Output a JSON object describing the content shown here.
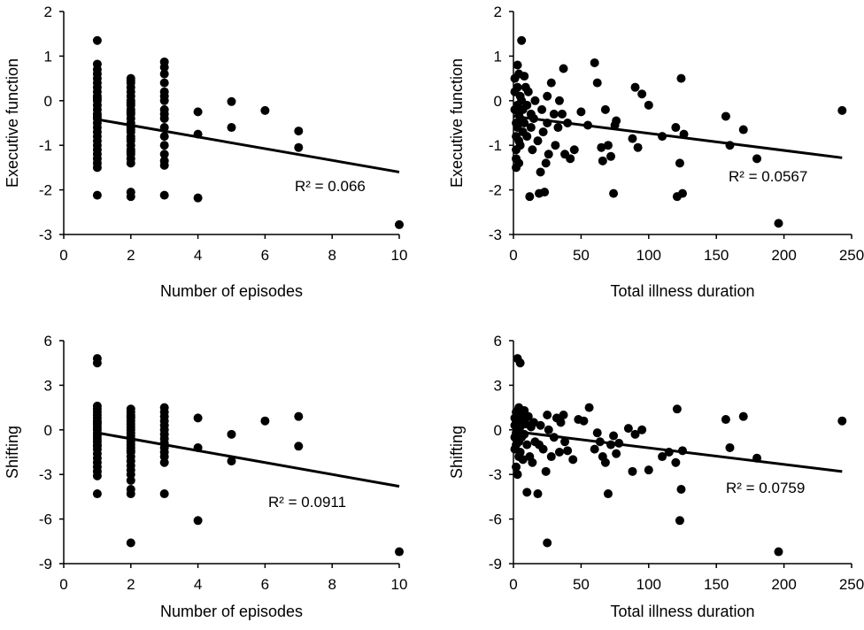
{
  "chart_data": [
    {
      "type": "scatter",
      "xlabel": "Number of episodes",
      "ylabel": "Executive function",
      "xlim": [
        0,
        10
      ],
      "ylim": [
        -3,
        2
      ],
      "xticks": [
        "0",
        "2",
        "4",
        "6",
        "8",
        "10"
      ],
      "yticks": [
        "2",
        "1",
        "0",
        "-1",
        "-2",
        "-3"
      ],
      "r2_label": "R² = 0.066",
      "trend": {
        "x": [
          1,
          10
        ],
        "y": [
          -0.42,
          -1.6
        ]
      },
      "points": {
        "x": [
          1,
          1,
          1,
          1,
          1,
          1,
          1,
          1,
          1,
          1,
          1,
          1,
          1,
          1,
          1,
          1,
          1,
          1,
          1,
          1,
          1,
          1,
          1,
          1,
          1,
          1,
          1,
          1,
          2,
          2,
          2,
          2,
          2,
          2,
          2,
          2,
          2,
          2,
          2,
          2,
          2,
          2,
          2,
          2,
          2,
          2,
          2,
          2,
          2,
          2,
          2,
          2,
          2,
          2,
          2,
          2,
          2,
          3,
          3,
          3,
          3,
          3,
          3,
          3,
          3,
          3,
          3,
          3,
          3,
          3,
          3,
          3,
          3,
          3,
          4,
          4,
          4,
          5,
          5,
          6,
          7,
          7,
          10
        ],
        "y": [
          1.35,
          0.82,
          0.7,
          0.6,
          0.5,
          0.4,
          0.3,
          0.2,
          0.1,
          0,
          -0.1,
          -0.2,
          -0.3,
          -0.4,
          -0.5,
          -0.6,
          -0.7,
          -0.8,
          -0.9,
          -1.0,
          -1.1,
          -1.2,
          -1.3,
          -1.4,
          -1.5,
          -2.12,
          0.05,
          -0.35,
          0.5,
          0.4,
          0.3,
          0.2,
          0.1,
          0,
          -0.1,
          -0.2,
          -0.3,
          -0.4,
          -0.5,
          -0.6,
          -0.7,
          -0.8,
          -0.9,
          -1.0,
          -1.1,
          -1.2,
          -1.3,
          -1.4,
          -2.05,
          -2.15,
          0.45,
          -0.25,
          -0.55,
          -0.85,
          -1.15,
          -0.05,
          -0.65,
          0.87,
          0.75,
          0.6,
          0.4,
          0.2,
          0,
          -0.2,
          -0.3,
          -0.4,
          -0.6,
          -0.8,
          -1.0,
          -1.2,
          -1.35,
          -1.45,
          -2.12,
          0.1,
          -0.25,
          -0.75,
          -2.18,
          -0.02,
          -0.6,
          -0.22,
          -0.68,
          -1.05,
          -2.78
        ]
      }
    },
    {
      "type": "scatter",
      "xlabel": "Total illness duration",
      "ylabel": "Executive function",
      "xlim": [
        0,
        250
      ],
      "ylim": [
        -3,
        2
      ],
      "xticks": [
        "0",
        "50",
        "100",
        "150",
        "200",
        "250"
      ],
      "yticks": [
        "2",
        "1",
        "0",
        "-1",
        "-2",
        "-3"
      ],
      "r2_label": "R² = 0.0567",
      "trend": {
        "x": [
          0,
          243
        ],
        "y": [
          -0.35,
          -1.28
        ]
      },
      "points": {
        "x": [
          1,
          1,
          1,
          2,
          2,
          2,
          2,
          2,
          3,
          3,
          3,
          3,
          4,
          4,
          4,
          4,
          5,
          5,
          5,
          6,
          6,
          7,
          7,
          8,
          8,
          9,
          10,
          10,
          11,
          12,
          13,
          13,
          14,
          15,
          16,
          18,
          19,
          20,
          21,
          22,
          23,
          24,
          25,
          25,
          26,
          28,
          30,
          31,
          33,
          34,
          36,
          37,
          38,
          40,
          42,
          45,
          50,
          55,
          60,
          62,
          65,
          66,
          68,
          70,
          72,
          74,
          75,
          76,
          88,
          90,
          92,
          95,
          100,
          110,
          120,
          121,
          123,
          124,
          125,
          126,
          157,
          160,
          170,
          180,
          196,
          243
        ],
        "y": [
          0.5,
          0.2,
          -0.2,
          -0.5,
          -0.8,
          -1.1,
          -1.3,
          -1.5,
          0.8,
          0.3,
          -0.1,
          -0.6,
          0.6,
          -0.3,
          -0.9,
          -1.4,
          0.1,
          -0.4,
          -1.0,
          1.35,
          0.0,
          -0.2,
          -0.7,
          0.55,
          -0.5,
          0.3,
          -0.1,
          -0.8,
          0.2,
          -2.15,
          -0.3,
          -0.6,
          -1.1,
          -0.4,
          0.0,
          -0.9,
          -2.08,
          -1.6,
          -0.2,
          -0.7,
          -2.05,
          -1.4,
          0.1,
          -0.5,
          -1.2,
          0.4,
          -0.3,
          -1.0,
          -0.6,
          0.0,
          -0.3,
          0.72,
          -1.2,
          -0.5,
          -1.3,
          -1.1,
          -0.25,
          -0.55,
          0.85,
          0.4,
          -1.05,
          -1.35,
          -0.2,
          -1.0,
          -1.25,
          -2.08,
          -0.55,
          -0.45,
          -0.85,
          0.3,
          -1.05,
          0.15,
          -0.1,
          -0.8,
          -0.6,
          -2.15,
          -1.4,
          0.5,
          -2.08,
          -0.75,
          -0.35,
          -1.0,
          -0.65,
          -1.3,
          -2.75,
          -0.22
        ]
      }
    },
    {
      "type": "scatter",
      "xlabel": "Number of episodes",
      "ylabel": "Shifting",
      "xlim": [
        0,
        10
      ],
      "ylim": [
        -9,
        6
      ],
      "xticks": [
        "0",
        "2",
        "4",
        "6",
        "8",
        "10"
      ],
      "yticks": [
        "6",
        "3",
        "0",
        "-3",
        "-6",
        "-9"
      ],
      "r2_label": "R² = 0.0911",
      "trend": {
        "x": [
          1,
          10
        ],
        "y": [
          -0.2,
          -3.8
        ]
      },
      "points": {
        "x": [
          1,
          1,
          1,
          1,
          1,
          1,
          1,
          1,
          1,
          1,
          1,
          1,
          1,
          1,
          1,
          1,
          1,
          1,
          1,
          1,
          1,
          1,
          1,
          1,
          1,
          1,
          2,
          2,
          2,
          2,
          2,
          2,
          2,
          2,
          2,
          2,
          2,
          2,
          2,
          2,
          2,
          2,
          2,
          2,
          2,
          2,
          2,
          2,
          2,
          2,
          2,
          2,
          3,
          3,
          3,
          3,
          3,
          3,
          3,
          3,
          3,
          3,
          3,
          3,
          3,
          3,
          4,
          4,
          4,
          5,
          5,
          6,
          7,
          7,
          10
        ],
        "y": [
          4.8,
          4.5,
          1.6,
          1.4,
          1.2,
          1.0,
          0.8,
          0.6,
          0.4,
          0.2,
          0,
          -0.2,
          -0.4,
          -0.6,
          -0.8,
          -1.0,
          -1.3,
          -1.6,
          -1.9,
          -2.2,
          -2.5,
          -2.8,
          -3.1,
          -4.3,
          0.5,
          -1.1,
          1.4,
          1.2,
          1.0,
          0.8,
          0.6,
          0.4,
          0.2,
          0,
          -0.2,
          -0.4,
          -0.6,
          -0.8,
          -1.0,
          -1.2,
          -1.5,
          -1.8,
          -2.1,
          -2.4,
          -2.7,
          -3.0,
          -3.4,
          -4.0,
          -4.3,
          -7.6,
          0.9,
          -1.4,
          1.5,
          1.2,
          0.9,
          0.6,
          0.3,
          0,
          -0.3,
          -0.6,
          -0.9,
          -1.2,
          -1.5,
          -1.8,
          -2.2,
          -4.3,
          0.8,
          -1.2,
          -6.1,
          -0.3,
          -2.1,
          0.6,
          0.9,
          -1.1,
          -8.2
        ]
      }
    },
    {
      "type": "scatter",
      "xlabel": "Total illness duration",
      "ylabel": "Shifting",
      "xlim": [
        0,
        250
      ],
      "ylim": [
        -9,
        6
      ],
      "xticks": [
        "0",
        "50",
        "100",
        "150",
        "200",
        "250"
      ],
      "yticks": [
        "6",
        "3",
        "0",
        "-3",
        "-6",
        "-9"
      ],
      "r2_label": "R² = 0.0759",
      "trend": {
        "x": [
          0,
          243
        ],
        "y": [
          -0.1,
          -2.8
        ]
      },
      "points": {
        "x": [
          1,
          1,
          1,
          1,
          2,
          2,
          2,
          2,
          2,
          3,
          3,
          3,
          4,
          4,
          4,
          5,
          5,
          5,
          6,
          6,
          7,
          7,
          8,
          8,
          9,
          10,
          10,
          11,
          12,
          13,
          14,
          15,
          16,
          18,
          19,
          20,
          22,
          24,
          25,
          25,
          26,
          28,
          30,
          32,
          34,
          35,
          37,
          38,
          40,
          44,
          48,
          52,
          56,
          60,
          62,
          64,
          66,
          68,
          70,
          72,
          74,
          76,
          78,
          85,
          88,
          90,
          95,
          100,
          110,
          115,
          120,
          121,
          123,
          124,
          125,
          157,
          160,
          170,
          180,
          196,
          243
        ],
        "y": [
          0.8,
          0.3,
          -0.5,
          -1.3,
          1.2,
          0.5,
          -0.2,
          -1.0,
          -2.5,
          4.8,
          0.0,
          -3.0,
          1.5,
          -0.8,
          -1.8,
          4.5,
          0.2,
          -1.5,
          1.0,
          -0.5,
          0.7,
          -2.0,
          1.3,
          -0.3,
          0.4,
          -1.0,
          -4.2,
          0.9,
          -1.8,
          0.2,
          -2.2,
          0.5,
          -0.8,
          -4.3,
          -1.0,
          0.3,
          -1.3,
          -2.8,
          -7.6,
          1.0,
          0.0,
          -1.8,
          -0.5,
          0.8,
          -1.5,
          0.5,
          1.0,
          -0.8,
          -1.4,
          -2.0,
          0.7,
          0.6,
          1.5,
          -1.3,
          -0.2,
          -0.8,
          -1.8,
          -2.2,
          -4.3,
          -1.0,
          -0.4,
          -1.6,
          -0.9,
          0.1,
          -2.8,
          -0.3,
          0.0,
          -2.7,
          -1.8,
          -1.5,
          -2.2,
          1.4,
          -6.1,
          -4.0,
          -1.4,
          0.7,
          -1.2,
          0.9,
          -1.9,
          -8.2,
          0.6
        ]
      }
    }
  ]
}
